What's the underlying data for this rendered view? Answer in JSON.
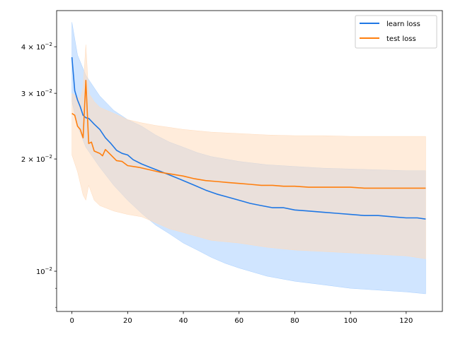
{
  "chart_data": {
    "type": "line",
    "title": "",
    "xlabel": "",
    "ylabel": "",
    "xlim": [
      -5.5,
      133
    ],
    "ylim": [
      0.0078,
      0.05
    ],
    "yscale": "log",
    "grid": false,
    "legend_position": "top-right",
    "x_ticks": [
      0,
      20,
      40,
      60,
      80,
      100,
      120
    ],
    "x_tick_labels": [
      "0",
      "20",
      "40",
      "60",
      "80",
      "100",
      "120"
    ],
    "y_ticks": [
      0.01,
      0.02,
      0.03,
      0.04
    ],
    "y_tick_labels": [
      {
        "base": "10",
        "exp": "−2",
        "coef": ""
      },
      {
        "base": "10",
        "exp": "−2",
        "coef": "2 × "
      },
      {
        "base": "10",
        "exp": "−2",
        "coef": "3 × "
      },
      {
        "base": "10",
        "exp": "−2",
        "coef": "4 × "
      }
    ],
    "series": [
      {
        "name": "learn loss",
        "color": "#1f77e4",
        "fill_color": "#a9d0ff",
        "points": [
          [
            0,
            0.0375
          ],
          [
            1,
            0.0305
          ],
          [
            2,
            0.0288
          ],
          [
            3,
            0.0276
          ],
          [
            4,
            0.0262
          ],
          [
            5,
            0.0258
          ],
          [
            6,
            0.0257
          ],
          [
            8,
            0.0248
          ],
          [
            10,
            0.024
          ],
          [
            12,
            0.0228
          ],
          [
            14,
            0.022
          ],
          [
            16,
            0.0211
          ],
          [
            18,
            0.0207
          ],
          [
            20,
            0.0205
          ],
          [
            22,
            0.0199
          ],
          [
            25,
            0.0194
          ],
          [
            28,
            0.019
          ],
          [
            32,
            0.0185
          ],
          [
            36,
            0.018
          ],
          [
            40,
            0.0175
          ],
          [
            44,
            0.017
          ],
          [
            48,
            0.0165
          ],
          [
            52,
            0.0161
          ],
          [
            56,
            0.0158
          ],
          [
            60,
            0.0155
          ],
          [
            64,
            0.0152
          ],
          [
            68,
            0.015
          ],
          [
            72,
            0.0148
          ],
          [
            76,
            0.0148
          ],
          [
            80,
            0.0146
          ],
          [
            85,
            0.0145
          ],
          [
            90,
            0.0144
          ],
          [
            95,
            0.0143
          ],
          [
            100,
            0.0142
          ],
          [
            105,
            0.0141
          ],
          [
            110,
            0.0141
          ],
          [
            115,
            0.014
          ],
          [
            120,
            0.0139
          ],
          [
            124,
            0.0139
          ],
          [
            127,
            0.0138
          ]
        ],
        "upper": [
          [
            0,
            0.0465
          ],
          [
            2,
            0.038
          ],
          [
            5,
            0.0335
          ],
          [
            10,
            0.0295
          ],
          [
            15,
            0.027
          ],
          [
            20,
            0.0255
          ],
          [
            25,
            0.0245
          ],
          [
            30,
            0.0232
          ],
          [
            35,
            0.0222
          ],
          [
            40,
            0.0215
          ],
          [
            45,
            0.0208
          ],
          [
            50,
            0.0203
          ],
          [
            60,
            0.0197
          ],
          [
            70,
            0.0193
          ],
          [
            80,
            0.0191
          ],
          [
            90,
            0.0189
          ],
          [
            100,
            0.0188
          ],
          [
            110,
            0.0187
          ],
          [
            120,
            0.0186
          ],
          [
            127,
            0.0186
          ]
        ],
        "lower": [
          [
            0,
            0.0285
          ],
          [
            2,
            0.0245
          ],
          [
            5,
            0.0215
          ],
          [
            10,
            0.019
          ],
          [
            15,
            0.017
          ],
          [
            20,
            0.0155
          ],
          [
            25,
            0.0143
          ],
          [
            30,
            0.0133
          ],
          [
            35,
            0.0126
          ],
          [
            40,
            0.0119
          ],
          [
            45,
            0.0114
          ],
          [
            50,
            0.0109
          ],
          [
            55,
            0.0105
          ],
          [
            60,
            0.0102
          ],
          [
            70,
            0.0097
          ],
          [
            80,
            0.0094
          ],
          [
            90,
            0.0092
          ],
          [
            100,
            0.009
          ],
          [
            110,
            0.0089
          ],
          [
            120,
            0.0088
          ],
          [
            127,
            0.0087
          ]
        ]
      },
      {
        "name": "test loss",
        "color": "#ff7f0e",
        "fill_color": "#ffdcbd",
        "points": [
          [
            0,
            0.0265
          ],
          [
            1,
            0.0262
          ],
          [
            2,
            0.0245
          ],
          [
            3,
            0.024
          ],
          [
            4,
            0.0228
          ],
          [
            5,
            0.0325
          ],
          [
            6,
            0.022
          ],
          [
            7,
            0.0222
          ],
          [
            8,
            0.021
          ],
          [
            10,
            0.0207
          ],
          [
            11,
            0.0204
          ],
          [
            12,
            0.0212
          ],
          [
            14,
            0.0205
          ],
          [
            16,
            0.0198
          ],
          [
            18,
            0.0197
          ],
          [
            20,
            0.0192
          ],
          [
            24,
            0.019
          ],
          [
            28,
            0.0187
          ],
          [
            32,
            0.0184
          ],
          [
            36,
            0.0182
          ],
          [
            40,
            0.018
          ],
          [
            44,
            0.0177
          ],
          [
            48,
            0.0175
          ],
          [
            52,
            0.0174
          ],
          [
            56,
            0.0173
          ],
          [
            60,
            0.0172
          ],
          [
            64,
            0.0171
          ],
          [
            68,
            0.017
          ],
          [
            72,
            0.017
          ],
          [
            76,
            0.0169
          ],
          [
            80,
            0.0169
          ],
          [
            85,
            0.0168
          ],
          [
            90,
            0.0168
          ],
          [
            95,
            0.0168
          ],
          [
            100,
            0.0168
          ],
          [
            105,
            0.0167
          ],
          [
            110,
            0.0167
          ],
          [
            115,
            0.0167
          ],
          [
            120,
            0.0167
          ],
          [
            124,
            0.0167
          ],
          [
            127,
            0.0167
          ]
        ],
        "upper": [
          [
            0,
            0.03
          ],
          [
            3,
            0.029
          ],
          [
            4,
            0.031
          ],
          [
            5,
            0.0405
          ],
          [
            6,
            0.03
          ],
          [
            8,
            0.0285
          ],
          [
            10,
            0.0275
          ],
          [
            15,
            0.0265
          ],
          [
            20,
            0.0255
          ],
          [
            25,
            0.025
          ],
          [
            30,
            0.0246
          ],
          [
            35,
            0.0243
          ],
          [
            40,
            0.024
          ],
          [
            50,
            0.0236
          ],
          [
            60,
            0.0234
          ],
          [
            70,
            0.0232
          ],
          [
            80,
            0.0231
          ],
          [
            90,
            0.0231
          ],
          [
            100,
            0.023
          ],
          [
            110,
            0.023
          ],
          [
            120,
            0.023
          ],
          [
            127,
            0.023
          ]
        ],
        "lower": [
          [
            0,
            0.0205
          ],
          [
            2,
            0.0185
          ],
          [
            4,
            0.016
          ],
          [
            5,
            0.0155
          ],
          [
            6,
            0.017
          ],
          [
            8,
            0.0155
          ],
          [
            10,
            0.015
          ],
          [
            15,
            0.0145
          ],
          [
            20,
            0.0142
          ],
          [
            25,
            0.014
          ],
          [
            30,
            0.0135
          ],
          [
            35,
            0.013
          ],
          [
            40,
            0.0127
          ],
          [
            45,
            0.0124
          ],
          [
            50,
            0.0121
          ],
          [
            60,
            0.0119
          ],
          [
            70,
            0.0116
          ],
          [
            80,
            0.0114
          ],
          [
            90,
            0.0113
          ],
          [
            100,
            0.0112
          ],
          [
            110,
            0.0111
          ],
          [
            120,
            0.011
          ],
          [
            127,
            0.0108
          ]
        ]
      }
    ]
  }
}
